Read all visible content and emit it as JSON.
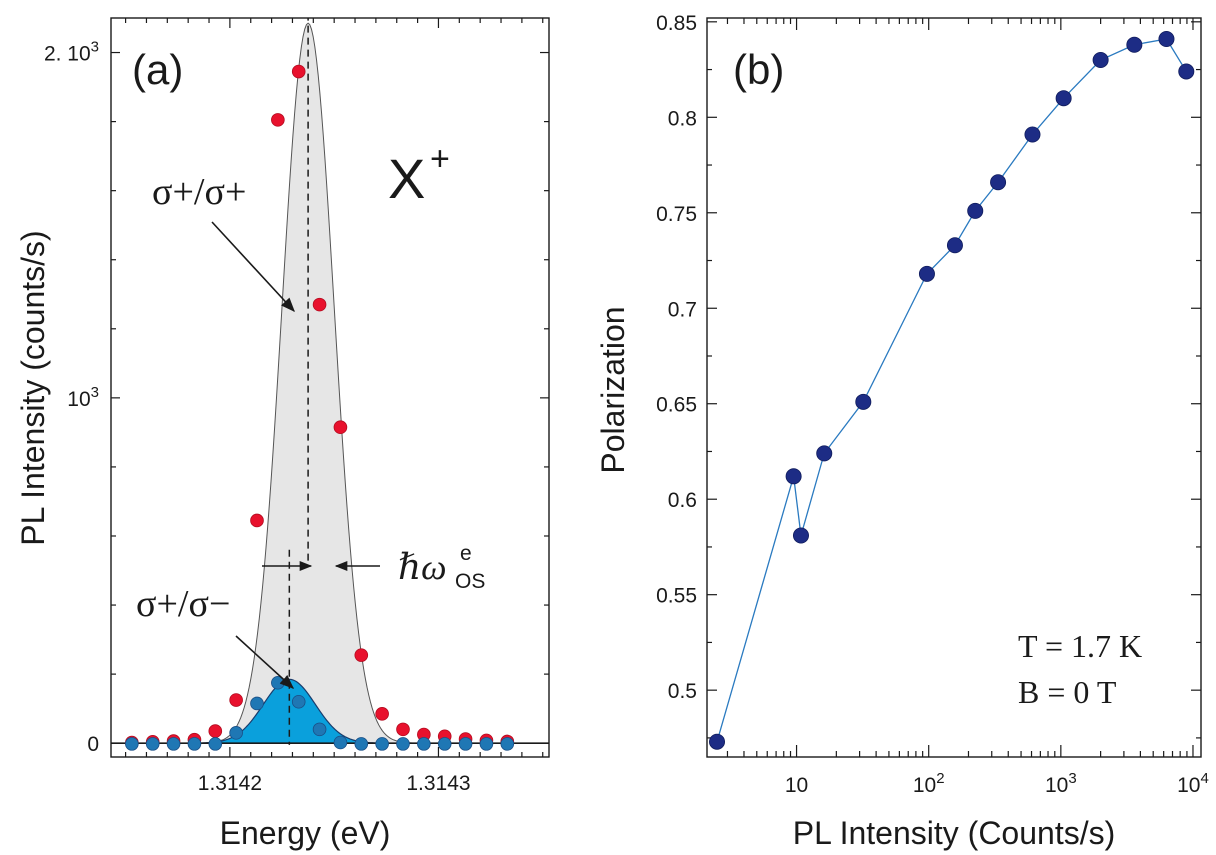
{
  "chart_data": [
    {
      "panel": "(a)",
      "type": "scatter",
      "xlabel": "Energy (eV)",
      "ylabel": "PL Intensity (counts/s)",
      "xlim": [
        1.314143,
        1.314353
      ],
      "ylim": [
        -40,
        2100
      ],
      "x_ticks": [
        {
          "value": 1.3142,
          "label": "1.3142"
        },
        {
          "value": 1.3143,
          "label": "1.3143"
        }
      ],
      "y_ticks": [
        {
          "value": 0,
          "base": "0",
          "exp": ""
        },
        {
          "value": 1000,
          "base": "10",
          "exp": "3"
        },
        {
          "value": 2000,
          "base": "2. 10",
          "exp": "3"
        }
      ],
      "title": "X",
      "title_sup": "+",
      "fits": {
        "co": {
          "center": 1.3142375,
          "sigma": 1.25e-05,
          "amp": 2085
        },
        "cross": {
          "center": 1.3142285,
          "sigma": 1.25e-05,
          "amp": 185
        }
      },
      "series": [
        {
          "name": "σ+/σ+",
          "color": "#e8112d",
          "points": [
            [
              1.314153,
              2
            ],
            [
              1.314163,
              4
            ],
            [
              1.314173,
              6
            ],
            [
              1.314183,
              10
            ],
            [
              1.314193,
              35
            ],
            [
              1.314203,
              125
            ],
            [
              1.314213,
              645
            ],
            [
              1.314223,
              1805
            ],
            [
              1.314233,
              1945
            ],
            [
              1.314243,
              1270
            ],
            [
              1.314253,
              915
            ],
            [
              1.314263,
              255
            ],
            [
              1.314273,
              85
            ],
            [
              1.314283,
              40
            ],
            [
              1.314293,
              25
            ],
            [
              1.314303,
              20
            ],
            [
              1.314313,
              12
            ],
            [
              1.314323,
              8
            ],
            [
              1.314333,
              5
            ]
          ]
        },
        {
          "name": "σ+/σ−",
          "color": "#1f77b4",
          "points": [
            [
              1.314153,
              -2
            ],
            [
              1.314163,
              -2
            ],
            [
              1.314173,
              -2
            ],
            [
              1.314183,
              -2
            ],
            [
              1.314193,
              -2
            ],
            [
              1.314203,
              30
            ],
            [
              1.314213,
              115
            ],
            [
              1.314223,
              175
            ],
            [
              1.314233,
              120
            ],
            [
              1.314243,
              40
            ],
            [
              1.314253,
              2
            ],
            [
              1.314263,
              -2
            ],
            [
              1.314273,
              -2
            ],
            [
              1.314283,
              -2
            ],
            [
              1.314293,
              -2
            ],
            [
              1.314303,
              -2
            ],
            [
              1.314313,
              -2
            ],
            [
              1.314323,
              -2
            ],
            [
              1.314333,
              -2
            ]
          ]
        }
      ],
      "annotations": {
        "co_label": "σ+/σ+",
        "cross_label": "σ+/σ−",
        "splitting_symbol": "ℏω",
        "splitting_sup": "e",
        "splitting_sub": "OS"
      }
    },
    {
      "panel": "(b)",
      "type": "line",
      "xlabel": "PL Intensity (Counts/s)",
      "ylabel": "Polarization",
      "xscale": "log",
      "xlim": [
        2.1,
        11500
      ],
      "ylim": [
        0.465,
        0.852
      ],
      "x_ticks": [
        {
          "value": 10,
          "base": "10",
          "exp": ""
        },
        {
          "value": 100,
          "base": "10",
          "exp": "2"
        },
        {
          "value": 1000,
          "base": "10",
          "exp": "3"
        },
        {
          "value": 10000,
          "base": "10",
          "exp": "4"
        }
      ],
      "y_ticks": [
        {
          "value": 0.5,
          "label": "0.5"
        },
        {
          "value": 0.55,
          "label": "0.55"
        },
        {
          "value": 0.6,
          "label": "0.6"
        },
        {
          "value": 0.65,
          "label": "0.65"
        },
        {
          "value": 0.7,
          "label": "0.7"
        },
        {
          "value": 0.75,
          "label": "0.75"
        },
        {
          "value": 0.8,
          "label": "0.8"
        },
        {
          "value": 0.85,
          "label": "0.85"
        }
      ],
      "series": [
        {
          "name": "Polarization",
          "color": "#1d2c85",
          "line_color": "#2a7ac0",
          "points": [
            [
              2.5,
              0.473
            ],
            [
              9.5,
              0.612
            ],
            [
              10.8,
              0.581
            ],
            [
              16.2,
              0.624
            ],
            [
              32,
              0.651
            ],
            [
              97,
              0.718
            ],
            [
              158,
              0.733
            ],
            [
              225,
              0.751
            ],
            [
              335,
              0.766
            ],
            [
              610,
              0.791
            ],
            [
              1050,
              0.81
            ],
            [
              2000,
              0.83
            ],
            [
              3600,
              0.838
            ],
            [
              6300,
              0.841
            ],
            [
              8900,
              0.824
            ]
          ]
        }
      ],
      "annotations": {
        "temperature": "T = 1.7 K",
        "field": "B = 0 T"
      }
    }
  ]
}
